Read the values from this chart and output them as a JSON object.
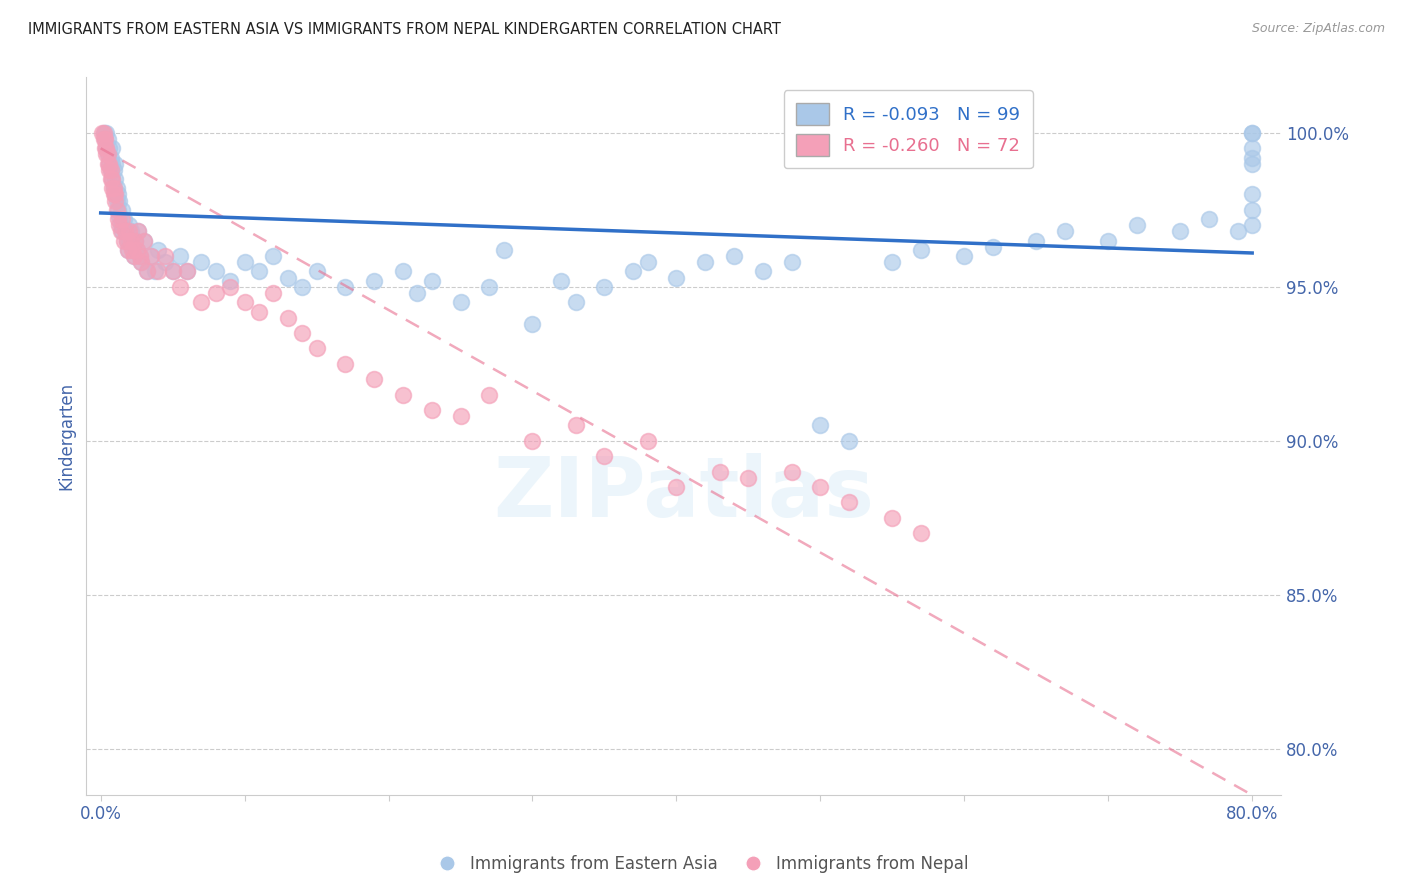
{
  "title": "IMMIGRANTS FROM EASTERN ASIA VS IMMIGRANTS FROM NEPAL KINDERGARTEN CORRELATION CHART",
  "source": "Source: ZipAtlas.com",
  "ylabel": "Kindergarten",
  "watermark": "ZIPatlas",
  "x_tick_labels": [
    "0.0%",
    "",
    "",
    "",
    "",
    "",
    "",
    "",
    "80.0%"
  ],
  "x_tick_values": [
    0.0,
    10.0,
    20.0,
    30.0,
    40.0,
    50.0,
    60.0,
    70.0,
    80.0
  ],
  "y_tick_labels": [
    "80.0%",
    "85.0%",
    "90.0%",
    "95.0%",
    "100.0%"
  ],
  "y_tick_values": [
    80.0,
    85.0,
    90.0,
    95.0,
    100.0
  ],
  "xlim": [
    -1.0,
    82.0
  ],
  "ylim": [
    78.5,
    101.8
  ],
  "blue_R": -0.093,
  "blue_N": 99,
  "pink_R": -0.26,
  "pink_N": 72,
  "legend_label_blue": "Immigrants from Eastern Asia",
  "legend_label_pink": "Immigrants from Nepal",
  "blue_color": "#aac8e8",
  "pink_color": "#f4a0b8",
  "blue_line_color": "#3070c8",
  "pink_line_color": "#e87090",
  "title_color": "#222222",
  "tick_label_color": "#4466aa",
  "blue_scatter_x": [
    0.2,
    0.3,
    0.4,
    0.4,
    0.5,
    0.5,
    0.6,
    0.6,
    0.7,
    0.7,
    0.8,
    0.8,
    0.8,
    0.9,
    0.9,
    1.0,
    1.0,
    1.0,
    1.1,
    1.1,
    1.2,
    1.2,
    1.3,
    1.3,
    1.4,
    1.5,
    1.5,
    1.6,
    1.7,
    1.8,
    1.9,
    2.0,
    2.0,
    2.1,
    2.2,
    2.3,
    2.4,
    2.5,
    2.6,
    2.7,
    2.8,
    3.0,
    3.2,
    3.5,
    3.8,
    4.0,
    4.5,
    5.0,
    5.5,
    6.0,
    7.0,
    8.0,
    9.0,
    10.0,
    11.0,
    12.0,
    13.0,
    14.0,
    15.0,
    17.0,
    19.0,
    21.0,
    22.0,
    23.0,
    25.0,
    27.0,
    28.0,
    30.0,
    32.0,
    33.0,
    35.0,
    37.0,
    38.0,
    40.0,
    42.0,
    44.0,
    46.0,
    48.0,
    50.0,
    52.0,
    55.0,
    57.0,
    60.0,
    62.0,
    65.0,
    67.0,
    70.0,
    72.0,
    75.0,
    77.0,
    79.0,
    80.0,
    80.0,
    80.0,
    80.0,
    80.0,
    80.0,
    80.0,
    80.0
  ],
  "blue_scatter_y": [
    100.0,
    99.8,
    99.5,
    100.0,
    99.3,
    99.8,
    99.0,
    99.5,
    98.8,
    99.2,
    98.5,
    99.0,
    99.5,
    98.2,
    98.8,
    98.0,
    98.5,
    99.0,
    97.8,
    98.2,
    97.5,
    98.0,
    97.3,
    97.8,
    97.0,
    97.5,
    96.8,
    97.2,
    96.8,
    96.5,
    96.2,
    97.0,
    96.5,
    96.8,
    96.3,
    96.0,
    96.5,
    96.2,
    96.8,
    96.0,
    95.8,
    96.5,
    95.5,
    96.0,
    95.5,
    96.2,
    95.8,
    95.5,
    96.0,
    95.5,
    95.8,
    95.5,
    95.2,
    95.8,
    95.5,
    96.0,
    95.3,
    95.0,
    95.5,
    95.0,
    95.2,
    95.5,
    94.8,
    95.2,
    94.5,
    95.0,
    96.2,
    93.8,
    95.2,
    94.5,
    95.0,
    95.5,
    95.8,
    95.3,
    95.8,
    96.0,
    95.5,
    95.8,
    90.5,
    90.0,
    95.8,
    96.2,
    96.0,
    96.3,
    96.5,
    96.8,
    96.5,
    97.0,
    96.8,
    97.2,
    96.8,
    97.0,
    98.0,
    99.0,
    100.0,
    99.5,
    100.0,
    99.2,
    97.5
  ],
  "pink_scatter_x": [
    0.1,
    0.2,
    0.2,
    0.3,
    0.3,
    0.4,
    0.4,
    0.5,
    0.5,
    0.6,
    0.6,
    0.7,
    0.7,
    0.8,
    0.8,
    0.9,
    0.9,
    1.0,
    1.0,
    1.1,
    1.2,
    1.3,
    1.4,
    1.5,
    1.6,
    1.7,
    1.8,
    1.9,
    2.0,
    2.1,
    2.2,
    2.3,
    2.4,
    2.5,
    2.6,
    2.7,
    2.8,
    3.0,
    3.2,
    3.5,
    4.0,
    4.5,
    5.0,
    5.5,
    6.0,
    7.0,
    8.0,
    9.0,
    10.0,
    11.0,
    12.0,
    13.0,
    14.0,
    15.0,
    17.0,
    19.0,
    21.0,
    23.0,
    25.0,
    27.0,
    30.0,
    33.0,
    35.0,
    38.0,
    40.0,
    43.0,
    45.0,
    48.0,
    50.0,
    52.0,
    55.0,
    57.0
  ],
  "pink_scatter_y": [
    100.0,
    99.8,
    100.0,
    99.5,
    99.8,
    99.3,
    99.5,
    99.0,
    99.3,
    98.8,
    99.0,
    98.5,
    98.8,
    98.2,
    98.5,
    98.0,
    98.2,
    97.8,
    98.0,
    97.5,
    97.2,
    97.0,
    96.8,
    97.2,
    96.5,
    96.8,
    96.5,
    96.2,
    96.8,
    96.5,
    96.2,
    96.0,
    96.5,
    96.2,
    96.8,
    96.0,
    95.8,
    96.5,
    95.5,
    96.0,
    95.5,
    96.0,
    95.5,
    95.0,
    95.5,
    94.5,
    94.8,
    95.0,
    94.5,
    94.2,
    94.8,
    94.0,
    93.5,
    93.0,
    92.5,
    92.0,
    91.5,
    91.0,
    90.8,
    91.5,
    90.0,
    90.5,
    89.5,
    90.0,
    88.5,
    89.0,
    88.8,
    89.0,
    88.5,
    88.0,
    87.5,
    87.0
  ]
}
